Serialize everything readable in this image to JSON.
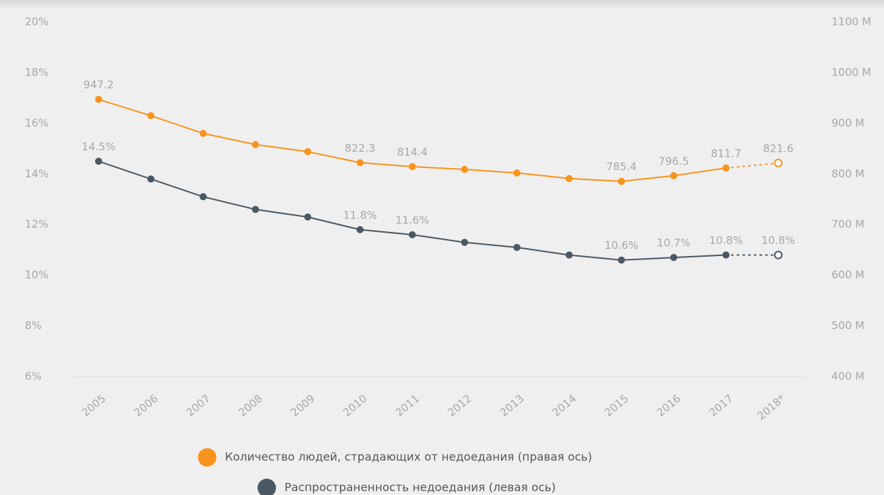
{
  "chart_data": {
    "type": "line",
    "categories": [
      "2005",
      "2006",
      "2007",
      "2008",
      "2009",
      "2010",
      "2011",
      "2012",
      "2013",
      "2014",
      "2015",
      "2016",
      "2017",
      "2018*"
    ],
    "series": [
      {
        "name": "Количество людей, страдающих от недоедания (правая ось)",
        "color": "#f7941d",
        "axis": "y2",
        "values": [
          947.2,
          915,
          880,
          858,
          844,
          822.3,
          814.4,
          809,
          802,
          791,
          785.4,
          796.5,
          811.7,
          821.6
        ],
        "value_labels": [
          "947.2",
          null,
          null,
          null,
          null,
          "822.3",
          "814.4",
          null,
          null,
          null,
          "785.4",
          "796.5",
          "811.7",
          "821.6"
        ]
      },
      {
        "name": "Распространенность недоедания (левая ось)",
        "color": "#4a5863",
        "values": [
          14.5,
          13.8,
          13.1,
          12.6,
          12.3,
          11.8,
          11.6,
          11.3,
          11.1,
          10.8,
          10.6,
          10.7,
          10.8,
          10.8
        ],
        "value_labels": [
          "14.5%",
          null,
          null,
          null,
          null,
          "11.8%",
          "11.6%",
          null,
          null,
          null,
          "10.6%",
          "10.7%",
          "10.8%",
          "10.8%"
        ]
      }
    ],
    "ylim": [
      6,
      20
    ],
    "yticks": [
      {
        "value": 6,
        "label": "6%"
      },
      {
        "value": 8,
        "label": "8%"
      },
      {
        "value": 10,
        "label": "10%"
      },
      {
        "value": 12,
        "label": "12%"
      },
      {
        "value": 14,
        "label": "14%"
      },
      {
        "value": 16,
        "label": "16%"
      },
      {
        "value": 18,
        "label": "18%"
      },
      {
        "value": 20,
        "label": "20%"
      }
    ],
    "y2lim": [
      400,
      1100
    ],
    "y2ticks": [
      {
        "value": 400,
        "label": "400 M"
      },
      {
        "value": 500,
        "label": "500 M"
      },
      {
        "value": 600,
        "label": "600 M"
      },
      {
        "value": 700,
        "label": "700 M"
      },
      {
        "value": 800,
        "label": "800 M"
      },
      {
        "value": 900,
        "label": "900 M"
      },
      {
        "value": 1000,
        "label": "1000 M"
      },
      {
        "value": 1100,
        "label": "1100 M"
      }
    ],
    "grid": false,
    "last_point_projected": true,
    "legend": "bottom"
  }
}
